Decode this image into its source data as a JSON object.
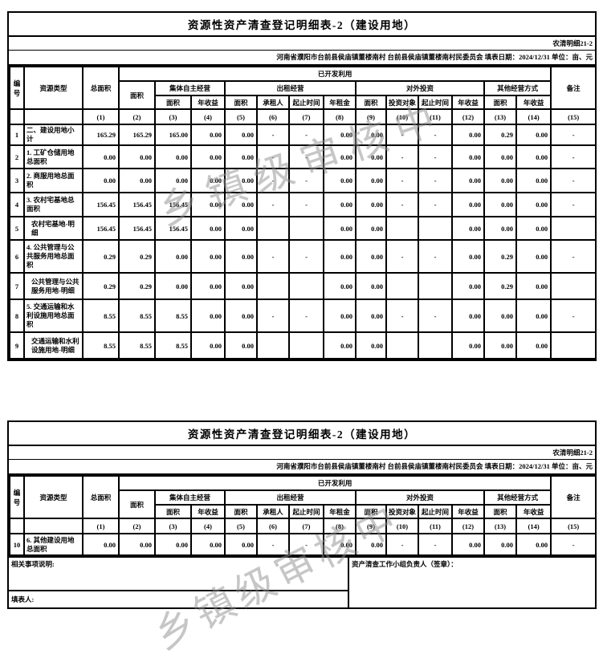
{
  "page": {
    "title": "资源性资产清查登记明细表-2（建设用地）",
    "form_code": "农清明细21-2",
    "info_line": "河南省濮阳市台前县侯庙镇董楼南村 台前县侯庙镇董楼南村民委员会  填表日期：2024/12/31  单位：亩、元"
  },
  "watermark": {
    "text": "乡镇级审核中",
    "color": "#8f8f8f"
  },
  "headers": {
    "no": "编号",
    "resource_type": "资源类型",
    "total_area": "总面积",
    "developed": "已开发利用",
    "area": "面积",
    "collective_group": "集体自主经营",
    "annual_income": "年收益",
    "lease_group": "出租经营",
    "lessee": "承租人",
    "period": "起止时间",
    "annual_rent": "年租金",
    "invest_group": "对外投资",
    "invest_target": "投资对象",
    "other_group": "其他经营方式",
    "remarks": "备注",
    "col_nums": [
      "(1)",
      "(2)",
      "(3)",
      "(4)",
      "(5)",
      "(6)",
      "(7)",
      "(8)",
      "(9)",
      "(10)",
      "(11)",
      "(12)",
      "(13)",
      "(14)",
      "(15)"
    ]
  },
  "table1": {
    "rows": [
      {
        "no": "1",
        "label": "二、建设用地小计",
        "indent": false,
        "cells": [
          "165.29",
          "165.29",
          "165.00",
          "0.00",
          "0.00",
          "-",
          "-",
          "0.00",
          "0.00",
          "-",
          "-",
          "0.00",
          "0.29",
          "0.00",
          "-"
        ]
      },
      {
        "no": "2",
        "label": "1. 工矿仓储用地总面积",
        "indent": false,
        "cells": [
          "0.00",
          "0.00",
          "0.00",
          "0.00",
          "0.00",
          "-",
          "-",
          "0.00",
          "0.00",
          "-",
          "-",
          "0.00",
          "0.00",
          "0.00",
          "-"
        ]
      },
      {
        "no": "3",
        "label": "2. 商服用地总面积",
        "indent": false,
        "cells": [
          "0.00",
          "0.00",
          "0.00",
          "0.00",
          "0.00",
          "-",
          "-",
          "0.00",
          "0.00",
          "-",
          "-",
          "0.00",
          "0.00",
          "0.00",
          "-"
        ]
      },
      {
        "no": "4",
        "label": "3. 农村宅基地总面积",
        "indent": false,
        "cells": [
          "156.45",
          "156.45",
          "156.45",
          "0.00",
          "0.00",
          "-",
          "-",
          "0.00",
          "0.00",
          "-",
          "-",
          "0.00",
          "0.00",
          "0.00",
          "-"
        ]
      },
      {
        "no": "5",
        "label": "农村宅基地-明细",
        "indent": true,
        "cells": [
          "156.45",
          "156.45",
          "156.45",
          "0.00",
          "0.00",
          "",
          "",
          "0.00",
          "0.00",
          "",
          "",
          "0.00",
          "0.00",
          "0.00",
          ""
        ]
      },
      {
        "no": "6",
        "label": "4. 公共管理与公共服务用地总面积",
        "indent": false,
        "cells": [
          "0.29",
          "0.29",
          "0.00",
          "0.00",
          "0.00",
          "-",
          "-",
          "0.00",
          "0.00",
          "-",
          "-",
          "0.00",
          "0.29",
          "0.00",
          "-"
        ]
      },
      {
        "no": "7",
        "label": "公共管理与公共服务用地-明细",
        "indent": true,
        "cells": [
          "0.29",
          "0.29",
          "0.00",
          "0.00",
          "0.00",
          "",
          "",
          "0.00",
          "0.00",
          "",
          "",
          "0.00",
          "0.29",
          "0.00",
          ""
        ]
      },
      {
        "no": "8",
        "label": "5. 交通运输和水利设施用地总面积",
        "indent": false,
        "cells": [
          "8.55",
          "8.55",
          "8.55",
          "0.00",
          "0.00",
          "-",
          "-",
          "0.00",
          "0.00",
          "-",
          "-",
          "0.00",
          "0.00",
          "0.00",
          "-"
        ]
      },
      {
        "no": "9",
        "label": "交通运输和水利设施用地-明细",
        "indent": true,
        "cells": [
          "8.55",
          "8.55",
          "8.55",
          "0.00",
          "0.00",
          "",
          "",
          "0.00",
          "0.00",
          "",
          "",
          "0.00",
          "0.00",
          "0.00",
          ""
        ]
      }
    ]
  },
  "table2": {
    "rows": [
      {
        "no": "10",
        "label": "6. 其他建设用地总面积",
        "indent": false,
        "cells": [
          "0.00",
          "0.00",
          "0.00",
          "0.00",
          "0.00",
          "-",
          "-",
          "0.00",
          "0.00",
          "-",
          "-",
          "0.00",
          "0.00",
          "0.00",
          "-"
        ]
      }
    ],
    "footer": {
      "notes_label": "相关事项说明:",
      "leader_label": "资产清查工作小组负责人（签章）：",
      "preparer_label": "填表人:"
    }
  }
}
